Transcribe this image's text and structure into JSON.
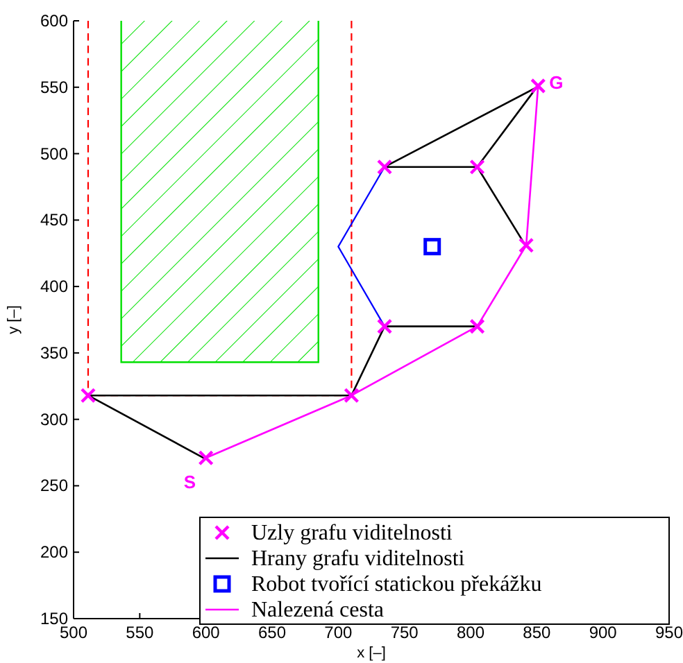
{
  "chart_data": {
    "type": "line",
    "xlabel": "x [–]",
    "ylabel": "y [–]",
    "xlim": [
      500,
      950
    ],
    "ylim": [
      150,
      600
    ],
    "xticks": [
      500,
      550,
      600,
      650,
      700,
      750,
      800,
      850,
      900,
      950
    ],
    "yticks": [
      150,
      200,
      250,
      300,
      350,
      400,
      450,
      500,
      550,
      600
    ],
    "grid": false,
    "legend": "bottom right",
    "series": [
      {
        "type": "scatter",
        "name": "Uzly grafu viditelnosti",
        "color": "#ff00ff",
        "marker": "cross",
        "x": [
          600,
          511,
          710,
          735,
          805,
          842,
          805,
          735,
          851
        ],
        "values": [
          271,
          318,
          318,
          370,
          370,
          431,
          490,
          490,
          551
        ]
      },
      {
        "name": "Hrany grafu viditelnosti",
        "color": "#000000",
        "x": [
          600,
          511,
          710,
          null,
          710,
          735,
          805,
          null,
          842,
          805,
          735,
          850,
          805
        ],
        "values": [
          270,
          318,
          318,
          null,
          318,
          370,
          370,
          null,
          430,
          490,
          490,
          550,
          490
        ]
      },
      {
        "type": "scatter",
        "name": "Robot tvořící statickou překážku",
        "color": "#0000ff",
        "marker": "square",
        "x": [
          771
        ],
        "values": [
          430
        ]
      },
      {
        "name": "Nalezená cesta",
        "color": "#ff00ff",
        "x": [
          600,
          710,
          805,
          842,
          851
        ],
        "values": [
          271,
          318,
          370,
          431,
          551
        ]
      },
      {
        "type": "area",
        "color": "#00e000",
        "x": [
          536,
          536,
          685,
          685
        ],
        "values": [
          600,
          343,
          343,
          600
        ]
      },
      {
        "color": "#ff0000",
        "line_style": "dashed",
        "x": [
          511,
          511,
          710,
          710
        ],
        "values": [
          600,
          318,
          318,
          600
        ]
      },
      {
        "color": "#0000ff",
        "x": [
          735,
          700,
          735
        ],
        "values": [
          490,
          430,
          370
        ]
      }
    ],
    "annotations": [
      {
        "text": "S",
        "x": 600,
        "y": 271
      },
      {
        "text": "G",
        "x": 851,
        "y": 551
      }
    ]
  }
}
